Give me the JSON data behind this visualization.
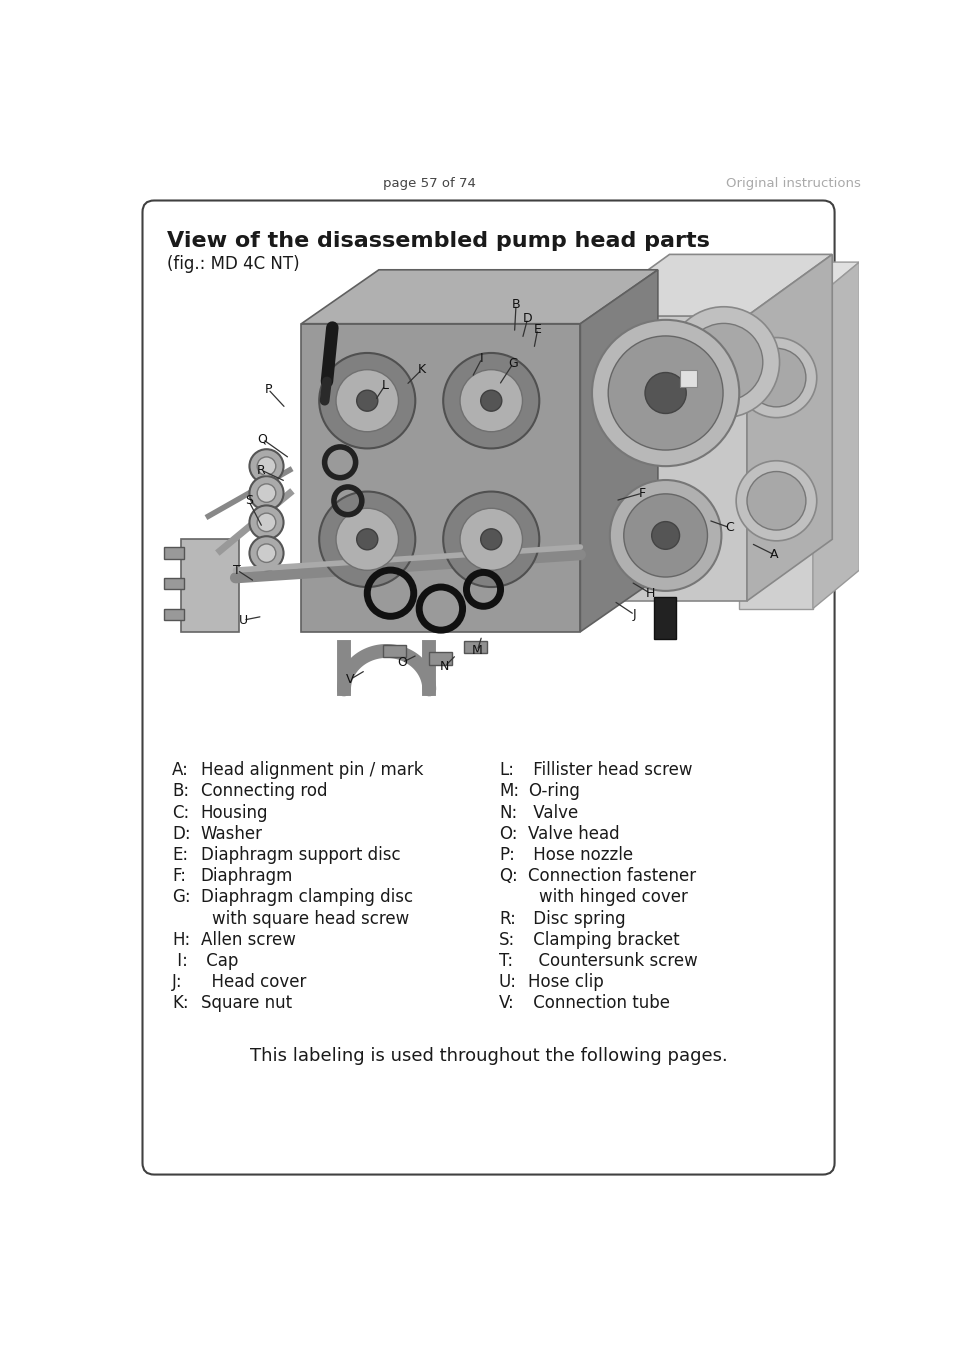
{
  "page_header_left": "page 57 of 74",
  "page_header_right": "Original instructions",
  "title": "View of the disassembled pump head parts",
  "subtitle": "(fig.: MD 4C NT)",
  "left_col": [
    [
      "A:",
      "Head alignment pin / mark"
    ],
    [
      "B:",
      "Connecting rod"
    ],
    [
      "C:",
      "Housing"
    ],
    [
      "D:",
      "Washer"
    ],
    [
      "E:",
      "Diaphragm support disc"
    ],
    [
      "F:",
      "Diaphragm"
    ],
    [
      "G:",
      "Diaphragm clamping disc"
    ],
    [
      "",
      "   with square head screw"
    ],
    [
      "H:",
      "Allen screw"
    ],
    [
      " I:",
      " Cap"
    ],
    [
      "J:",
      "  Head cover"
    ],
    [
      "K:",
      "Square nut"
    ]
  ],
  "right_col": [
    [
      "L:",
      " Fillister head screw"
    ],
    [
      "M:",
      "O-ring"
    ],
    [
      "N:",
      " Valve"
    ],
    [
      "O:",
      "Valve head"
    ],
    [
      "P:",
      " Hose nozzle"
    ],
    [
      "Q:",
      "Connection fastener"
    ],
    [
      "",
      "     with hinged cover"
    ],
    [
      "R:",
      " Disc spring"
    ],
    [
      "S:",
      " Clamping bracket"
    ],
    [
      "T:",
      "  Countersunk screw"
    ],
    [
      "U:",
      "Hose clip"
    ],
    [
      "V:",
      " Connection tube"
    ]
  ],
  "footer_note": "This labeling is used throughout the following pages.",
  "bg_color": "#ffffff",
  "border_color": "#404040",
  "text_color": "#1a1a1a",
  "header_gray": "#999999",
  "title_fontsize": 16,
  "subtitle_fontsize": 12,
  "label_fontsize": 12,
  "footer_fontsize": 13
}
